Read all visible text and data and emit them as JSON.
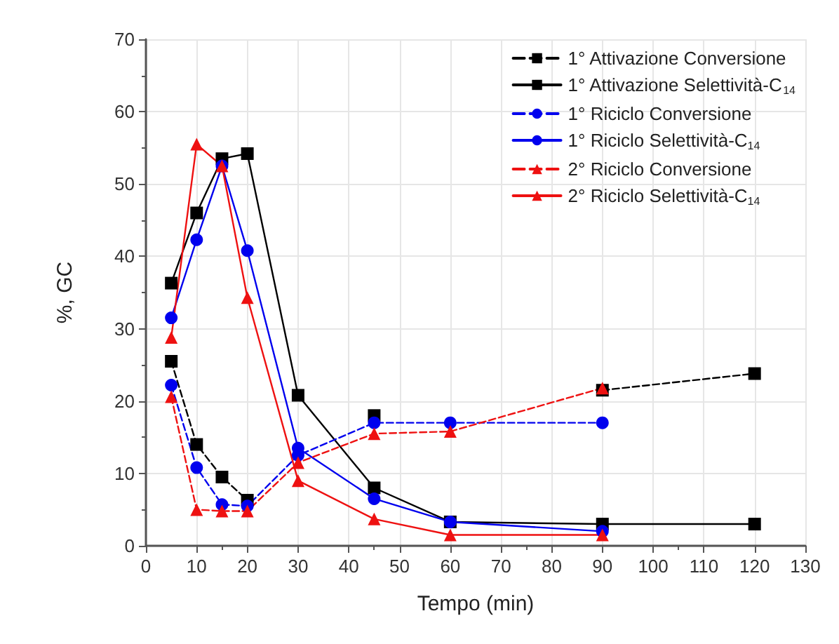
{
  "chart_data": {
    "type": "line",
    "xlabel": "Tempo (min)",
    "ylabel": "%, GC",
    "xlim": [
      0,
      130
    ],
    "xticks": [
      0,
      10,
      20,
      30,
      40,
      50,
      60,
      70,
      80,
      90,
      100,
      110,
      120,
      130
    ],
    "ylim": [
      0,
      70
    ],
    "yticks": [
      0,
      10,
      20,
      30,
      40,
      50,
      60,
      70
    ],
    "grid": true,
    "legend": "top right",
    "series": [
      {
        "name": "1° Attivazione Conversione",
        "color": "#000000",
        "marker": "square",
        "line_style": "dashed",
        "x": [
          5,
          10,
          15,
          20,
          30,
          45,
          60,
          90,
          120
        ],
        "values": [
          25.5,
          14,
          9.5,
          6.3,
          null,
          18,
          null,
          21.5,
          23.8
        ]
      },
      {
        "name": "1° Attivazione Selettività-C$_{14}$",
        "color": "#000000",
        "marker": "square",
        "line_style": "solid",
        "x": [
          5,
          10,
          15,
          20,
          30,
          45,
          60,
          90,
          120
        ],
        "values": [
          36.3,
          46,
          53.5,
          54.2,
          20.8,
          8,
          3.3,
          3,
          3
        ]
      },
      {
        "name": "1° Riciclo Conversione",
        "color": "#0000ee",
        "marker": "circle",
        "line_style": "dashed",
        "x": [
          5,
          10,
          15,
          20,
          30,
          45,
          60,
          90
        ],
        "values": [
          22.2,
          10.8,
          5.7,
          5.5,
          12.5,
          17,
          17,
          17
        ]
      },
      {
        "name": "1° Riciclo Selettività-C$_{14}$",
        "color": "#0000ee",
        "marker": "circle",
        "line_style": "solid",
        "x": [
          5,
          10,
          15,
          20,
          30,
          45,
          60,
          90
        ],
        "values": [
          31.5,
          42.3,
          52.5,
          40.8,
          13.5,
          6.5,
          3.3,
          2
        ]
      },
      {
        "name": "2° Riciclo Conversione",
        "color": "#ee1111",
        "marker": "triangle",
        "line_style": "dashed",
        "x": [
          5,
          10,
          15,
          20,
          30,
          45,
          60,
          90
        ],
        "values": [
          20.6,
          5,
          4.8,
          4.8,
          11.5,
          15.5,
          15.8,
          21.8
        ]
      },
      {
        "name": "2° Riciclo Selettività-C$_{14}$",
        "color": "#ee1111",
        "marker": "triangle",
        "line_style": "solid",
        "x": [
          5,
          10,
          15,
          20,
          30,
          45,
          60,
          90
        ],
        "values": [
          28.8,
          55.5,
          52.5,
          34.3,
          9,
          3.7,
          1.5,
          1.5
        ]
      }
    ]
  }
}
